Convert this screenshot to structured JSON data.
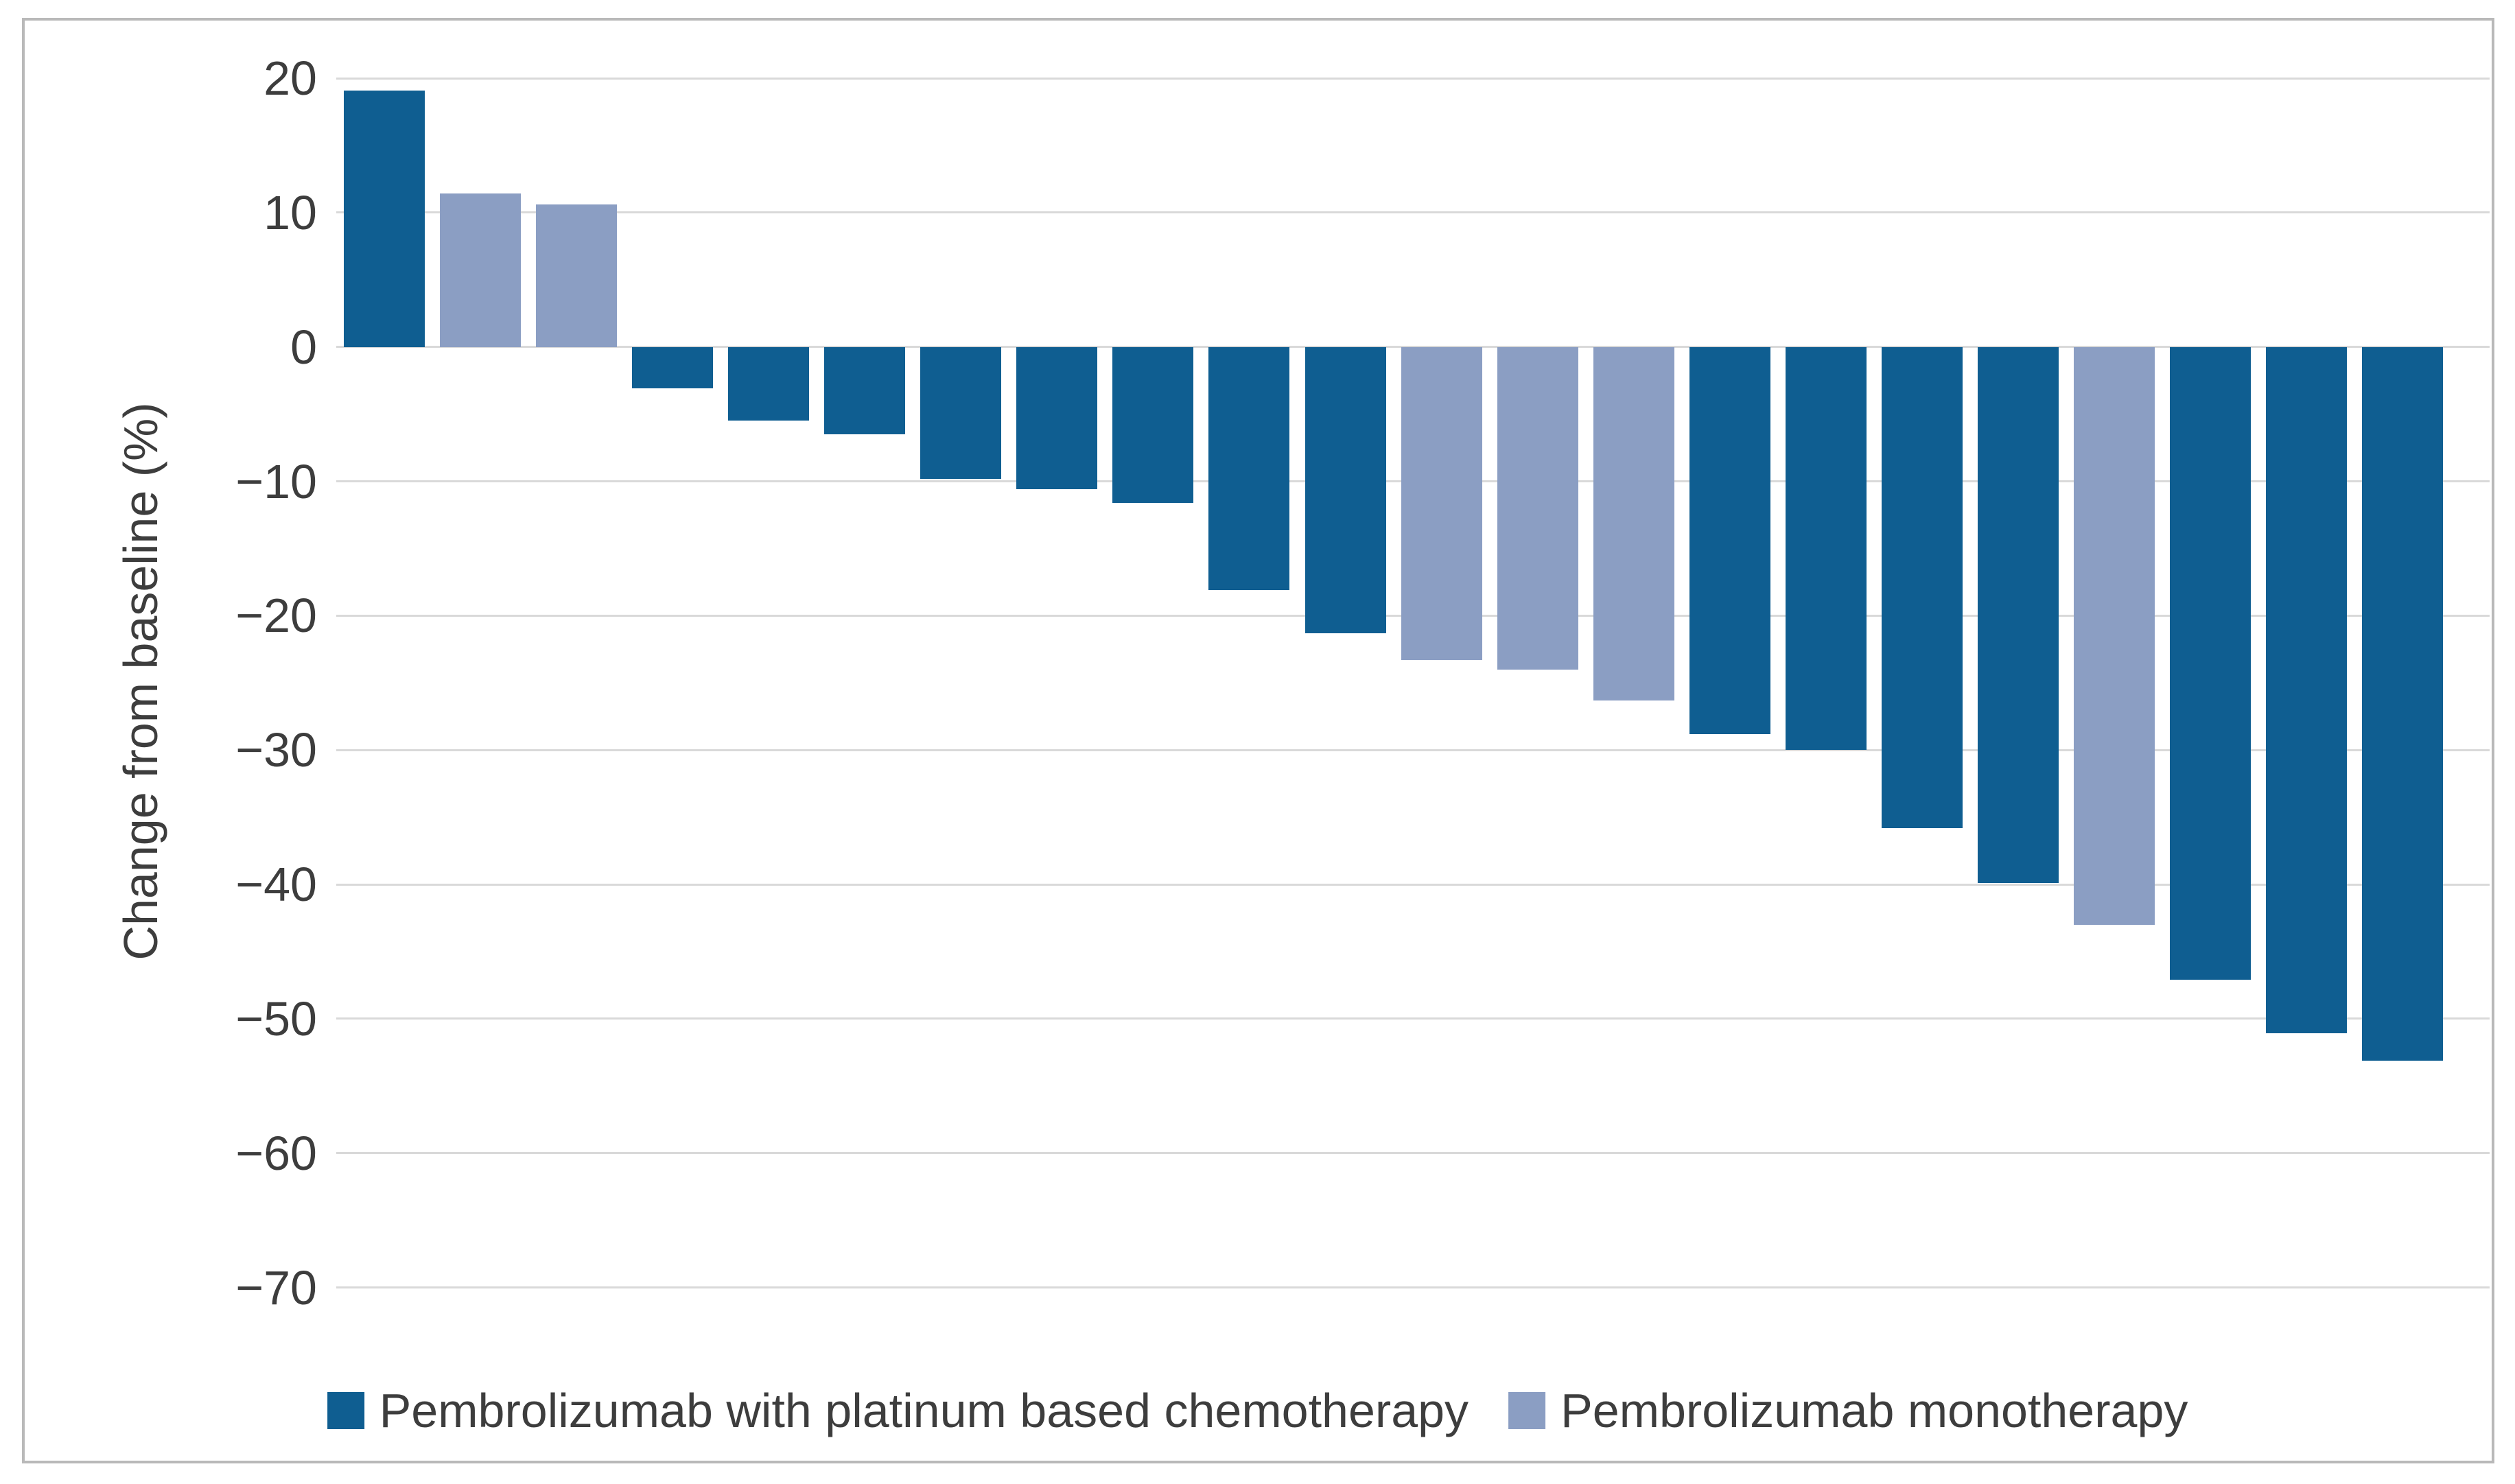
{
  "chart_data": {
    "type": "bar",
    "title": "",
    "xlabel": "",
    "ylabel": "Change from baseline (%)",
    "ylim": [
      -70,
      20
    ],
    "ytick_interval": 10,
    "yticks": [
      20,
      10,
      0,
      -10,
      -20,
      -30,
      -40,
      -50,
      -60,
      -70
    ],
    "ytick_labels": [
      "20",
      "10",
      "0",
      "−10",
      "−20",
      "−30",
      "−40",
      "−50",
      "−60",
      "−70"
    ],
    "grid": "horizontal",
    "gridline_color": "#d9d9d9",
    "legend_position": "bottom",
    "series": [
      {
        "name": "Pembrolizumab with platinum based chemotherapy",
        "color": "#0f5e91"
      },
      {
        "name": "Pembrolizumab monotherapy",
        "color": "#8b9ec3"
      }
    ],
    "bars": [
      {
        "value": 19.1,
        "series": 0
      },
      {
        "value": 11.4,
        "series": 1
      },
      {
        "value": 10.6,
        "series": 1
      },
      {
        "value": -3.1,
        "series": 0
      },
      {
        "value": -5.5,
        "series": 0
      },
      {
        "value": -6.5,
        "series": 0
      },
      {
        "value": -9.8,
        "series": 0
      },
      {
        "value": -10.6,
        "series": 0
      },
      {
        "value": -11.6,
        "series": 0
      },
      {
        "value": -18.1,
        "series": 0
      },
      {
        "value": -21.3,
        "series": 0
      },
      {
        "value": -23.3,
        "series": 1
      },
      {
        "value": -24.0,
        "series": 1
      },
      {
        "value": -26.3,
        "series": 1
      },
      {
        "value": -28.8,
        "series": 0
      },
      {
        "value": -30.0,
        "series": 0
      },
      {
        "value": -35.8,
        "series": 0
      },
      {
        "value": -39.9,
        "series": 0
      },
      {
        "value": -43.0,
        "series": 1
      },
      {
        "value": -47.1,
        "series": 0
      },
      {
        "value": -51.1,
        "series": 0
      },
      {
        "value": -53.1,
        "series": 0
      }
    ]
  },
  "panel": {
    "border_color": "#b9b9b9",
    "background": "#ffffff"
  }
}
